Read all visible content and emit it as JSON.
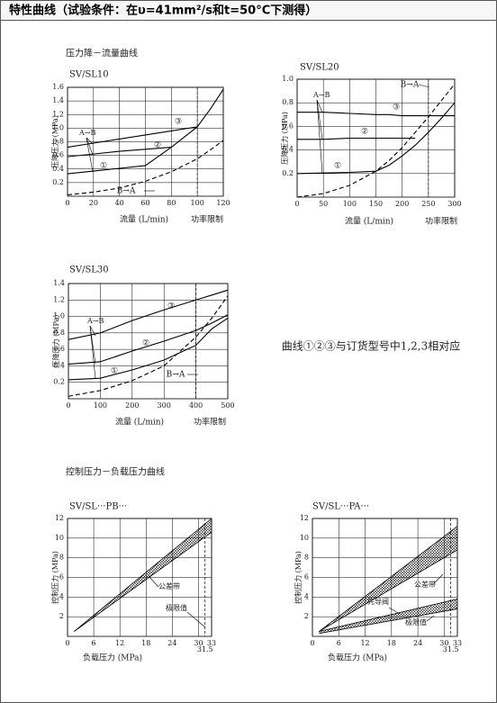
{
  "header": {
    "title": "特性曲线（试验条件：在υ=41mm²/s和t=50°C下测得）"
  },
  "section_titles": [
    "压力降－流量曲线",
    "控制压力－负载压力曲线"
  ],
  "note": "曲线①②③与订货型号中1,2,3相对应",
  "chart_data": [
    {
      "type": "line",
      "title": "SV/SL10",
      "x_label": "流量 (L/min)",
      "y_label": "压降压力 (MPa)",
      "limit_x": 100,
      "limit_label": "功率限制",
      "xlim": [
        0,
        120
      ],
      "xticks": [
        0,
        20,
        40,
        60,
        80,
        100,
        120
      ],
      "ylim": [
        0,
        1.6
      ],
      "yticks": [
        0.2,
        0.4,
        0.6,
        0.8,
        {
          "value": 1,
          "label": "1.0"
        },
        1.2,
        1.4,
        1.6
      ],
      "grid": true,
      "annotations": [
        "A→B"
      ],
      "x": [
        0,
        20,
        40,
        60,
        80,
        100,
        110,
        120
      ],
      "series": [
        {
          "name": "①",
          "color": "#000000",
          "dashed": false,
          "values": [
            0.33,
            0.37,
            0.41,
            0.45,
            0.72,
            1.02,
            1.28,
            1.57
          ]
        },
        {
          "name": "②",
          "color": "#000000",
          "dashed": false,
          "values": [
            0.58,
            0.62,
            0.66,
            0.69,
            0.72,
            null,
            null,
            null
          ]
        },
        {
          "name": "③",
          "color": "#000000",
          "dashed": false,
          "values": [
            0.72,
            0.78,
            0.84,
            0.9,
            0.96,
            1.02,
            null,
            null
          ]
        },
        {
          "name": "B→A",
          "color": "#000000",
          "dashed": true,
          "values": [
            0.02,
            0.06,
            0.12,
            0.22,
            0.36,
            0.55,
            0.68,
            0.82
          ]
        }
      ]
    },
    {
      "type": "line",
      "title": "SV/SL20",
      "x_label": "流量 (L/min)",
      "y_label": "压降压力 (MPa)",
      "limit_x": 250,
      "limit_label": "功率限制",
      "xlim": [
        0,
        300
      ],
      "xticks": [
        0,
        50,
        100,
        150,
        200,
        250,
        300
      ],
      "ylim": [
        0,
        1
      ],
      "yticks": [
        0.2,
        0.4,
        0.6,
        0.8,
        {
          "value": 1,
          "label": "1.0"
        }
      ],
      "grid": true,
      "annotations": [
        "A→B"
      ],
      "x": [
        0,
        50,
        100,
        150,
        175,
        200,
        225,
        250,
        275,
        300
      ],
      "series": [
        {
          "name": "①",
          "color": "#000000",
          "dashed": false,
          "values": [
            0.2,
            0.205,
            0.21,
            0.22,
            0.27,
            0.35,
            0.44,
            0.55,
            0.67,
            0.8
          ]
        },
        {
          "name": "②",
          "color": "#000000",
          "dashed": false,
          "values": [
            0.49,
            0.49,
            0.5,
            0.5,
            0.5,
            0.5,
            0.5,
            null,
            null,
            null
          ]
        },
        {
          "name": "③",
          "color": "#000000",
          "dashed": false,
          "values": [
            0.72,
            0.72,
            0.71,
            0.7,
            0.7,
            0.69,
            0.69,
            0.69,
            0.69,
            0.69
          ]
        },
        {
          "name": "B→A",
          "color": "#000000",
          "dashed": true,
          "values": [
            0,
            0.03,
            0.1,
            0.22,
            0.31,
            0.42,
            0.55,
            0.68,
            0.82,
            0.96
          ]
        }
      ]
    },
    {
      "type": "line",
      "title": "SV/SL30",
      "x_label": "流量 (L/min)",
      "y_label": "压降压力 (MPa)",
      "limit_x": 400,
      "limit_label": "功率限制",
      "xlim": [
        0,
        500
      ],
      "xticks": [
        0,
        100,
        200,
        300,
        400,
        500
      ],
      "ylim": [
        0,
        1.4
      ],
      "yticks": [
        0.2,
        0.4,
        0.6,
        0.8,
        {
          "value": 1,
          "label": "1.0"
        },
        1.2,
        1.4
      ],
      "grid": true,
      "annotations": [
        "A→B"
      ],
      "x": [
        0,
        100,
        200,
        300,
        400,
        450,
        500
      ],
      "series": [
        {
          "name": "①",
          "color": "#000000",
          "dashed": false,
          "values": [
            0.23,
            0.25,
            0.35,
            0.47,
            0.65,
            0.85,
            0.98
          ]
        },
        {
          "name": "②",
          "color": "#000000",
          "dashed": false,
          "values": [
            0.42,
            0.45,
            0.58,
            0.7,
            0.83,
            0.92,
            1.02
          ]
        },
        {
          "name": "③",
          "color": "#000000",
          "dashed": false,
          "values": [
            0.72,
            0.8,
            0.95,
            1.08,
            1.2,
            1.26,
            1.32
          ]
        },
        {
          "name": "B→A",
          "color": "#000000",
          "dashed": true,
          "values": [
            0.03,
            0.1,
            0.22,
            0.4,
            0.75,
            0.98,
            1.25
          ]
        }
      ]
    },
    {
      "type": "band",
      "title": "SV/SL···PB···",
      "x_label": "负载压力 (MPa)",
      "y_label": "控制压力 (MPa)",
      "limit_x": 31.5,
      "xlim": [
        0,
        33
      ],
      "xticks": [
        0,
        6,
        12,
        18,
        24,
        30,
        33
      ],
      "ylim": [
        0,
        12
      ],
      "yticks": [
        2,
        4,
        6,
        8,
        10,
        12
      ],
      "grid": true,
      "annotations": [
        "极限值"
      ],
      "x": [
        1.5,
        33
      ],
      "series": [
        {
          "name": "公差带",
          "color": "#000000",
          "lower": [
            0.5,
            10.6
          ],
          "upper": [
            0.5,
            12
          ]
        }
      ]
    },
    {
      "type": "band",
      "title": "SV/SL···PA···",
      "x_label": "负载压力 (MPa)",
      "y_label": "控制压力 (MPa)",
      "limit_x": 31.5,
      "xlim": [
        0,
        33
      ],
      "xticks": [
        0,
        6,
        12,
        18,
        24,
        30,
        33
      ],
      "ylim": [
        0,
        12
      ],
      "yticks": [
        2,
        4,
        6,
        8,
        10,
        12
      ],
      "grid": true,
      "annotations": [
        "极限值"
      ],
      "x": [
        1.5,
        33
      ],
      "series": [
        {
          "name": "公差带",
          "color": "#000000",
          "lower": [
            0.5,
            8.8
          ],
          "upper": [
            0.5,
            11.2
          ]
        },
        {
          "name": "先导阀",
          "color": "#000000",
          "lower": [
            0.3,
            2.8
          ],
          "upper": [
            0.5,
            3.8
          ]
        }
      ]
    }
  ]
}
